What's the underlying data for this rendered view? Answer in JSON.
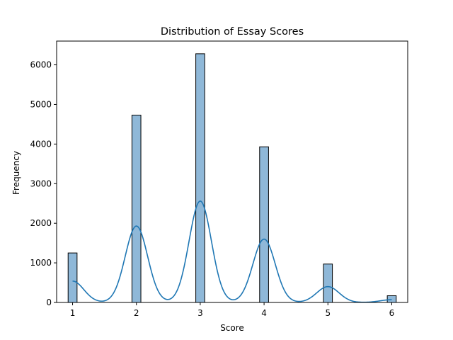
{
  "chart_data": {
    "type": "bar",
    "title": "Distribution of Essay Scores",
    "xlabel": "Score",
    "ylabel": "Frequency",
    "xlim": [
      0.75,
      6.25
    ],
    "ylim": [
      0,
      6600
    ],
    "x_ticks": [
      1,
      2,
      3,
      4,
      5,
      6
    ],
    "y_ticks": [
      0,
      1000,
      2000,
      3000,
      4000,
      5000,
      6000
    ],
    "bin_width": 0.14,
    "bars": [
      {
        "x": 1,
        "value": 1250
      },
      {
        "x": 2,
        "value": 4730
      },
      {
        "x": 3,
        "value": 6280
      },
      {
        "x": 4,
        "value": 3930
      },
      {
        "x": 5,
        "value": 970
      },
      {
        "x": 6,
        "value": 170
      }
    ],
    "kde": {
      "color": "#1f77b4",
      "bandwidth": 0.175,
      "peaks": [
        {
          "x": 1,
          "value": 540
        },
        {
          "x": 2,
          "value": 1930
        },
        {
          "x": 3,
          "value": 2560
        },
        {
          "x": 4,
          "value": 1600
        },
        {
          "x": 5,
          "value": 400
        },
        {
          "x": 6,
          "value": 70
        }
      ]
    },
    "bar_fill": "#8fb8d8",
    "bar_edge": "#000000",
    "grid": false,
    "legend": "none"
  }
}
